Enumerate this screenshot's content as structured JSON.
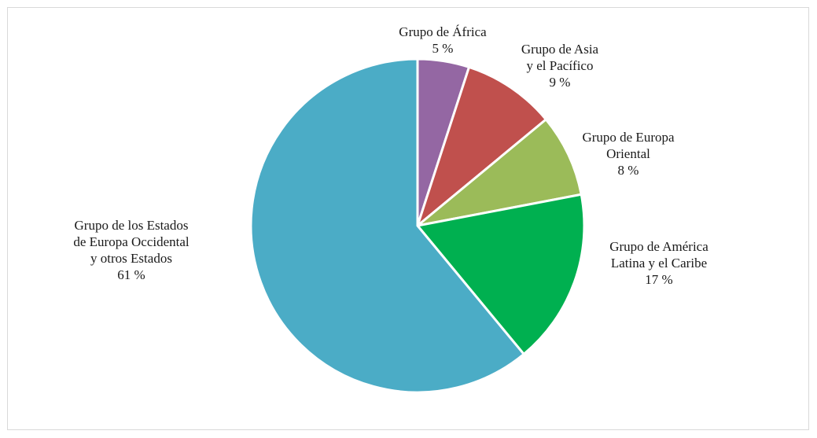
{
  "chart_data": {
    "type": "pie",
    "title": "",
    "start": "12 o'clock, clockwise",
    "slices": [
      {
        "key": "africa",
        "lines": [
          "Grupo de África"
        ],
        "value_label": "5 %",
        "value": 5,
        "color": "#9467A3"
      },
      {
        "key": "asia_pacific",
        "lines": [
          "Grupo de Asia",
          "y el Pacífico"
        ],
        "value_label": "9 %",
        "value": 9,
        "color": "#C0504D"
      },
      {
        "key": "eastern_europe",
        "lines": [
          "Grupo de Europa",
          "Oriental"
        ],
        "value_label": "8 %",
        "value": 8,
        "color": "#9BBB59"
      },
      {
        "key": "latin_america_caribbean",
        "lines": [
          "Grupo de América",
          "Latina y el Caribe"
        ],
        "value_label": "17 %",
        "value": 17,
        "color": "#00B050"
      },
      {
        "key": "weog",
        "lines": [
          "Grupo de los Estados",
          "de Europa Occidental",
          "y otros Estados"
        ],
        "value_label": "61 %",
        "value": 61,
        "color": "#4BACC6"
      }
    ]
  }
}
